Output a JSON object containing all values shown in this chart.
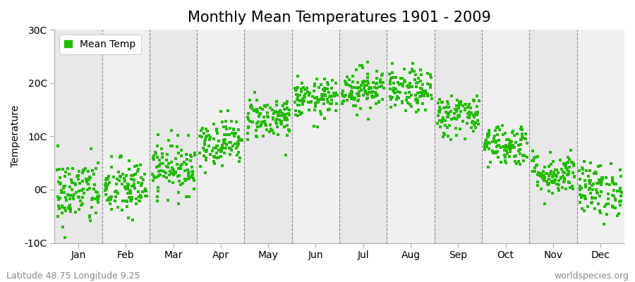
{
  "title": "Monthly Mean Temperatures 1901 - 2009",
  "ylabel": "Temperature",
  "ylim": [
    -10,
    30
  ],
  "yticks": [
    -10,
    0,
    10,
    20,
    30
  ],
  "ytick_labels": [
    "-10C",
    "0C",
    "10C",
    "20C",
    "30C"
  ],
  "months": [
    "Jan",
    "Feb",
    "Mar",
    "Apr",
    "May",
    "Jun",
    "Jul",
    "Aug",
    "Sep",
    "Oct",
    "Nov",
    "Dec"
  ],
  "mean_temps": [
    -0.5,
    0.2,
    4.2,
    9.0,
    13.5,
    17.0,
    19.0,
    18.5,
    14.0,
    8.5,
    3.0,
    0.0
  ],
  "std_temps": [
    3.2,
    2.8,
    2.5,
    2.2,
    2.0,
    1.8,
    2.0,
    2.0,
    2.0,
    2.0,
    2.0,
    2.5
  ],
  "n_years": 109,
  "dot_color": "#22bb00",
  "dot_size": 5,
  "fig_bg_color": "#ffffff",
  "plot_bg_color": "#ffffff",
  "band_color_odd": "#e8e8e8",
  "band_color_even": "#f0f0f0",
  "legend_label": "Mean Temp",
  "footer_left": "Latitude 48.75 Longitude 9.25",
  "footer_right": "worldspecies.org",
  "title_fontsize": 15,
  "axis_label_fontsize": 10,
  "tick_fontsize": 10,
  "footer_fontsize": 9,
  "seed": 42
}
